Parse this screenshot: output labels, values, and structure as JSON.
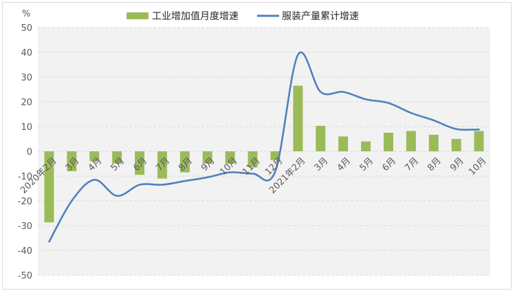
{
  "chart_data": {
    "type": "bar+line",
    "unit_label": "%",
    "ylim": [
      -50,
      50
    ],
    "yticks": [
      50,
      40,
      30,
      20,
      10,
      0,
      -10,
      -20,
      -30,
      -40,
      -50
    ],
    "grid": true,
    "legend_position": "top-center",
    "categories": [
      "2020年2月",
      "3月",
      "4月",
      "5月",
      "6月",
      "7月",
      "8月",
      "9月",
      "10月",
      "11月",
      "12月",
      "2021年2月",
      "3月",
      "4月",
      "5月",
      "6月",
      "7月",
      "8月",
      "9月",
      "10月"
    ],
    "series": [
      {
        "name": "工业增加值月度增速",
        "type": "bar",
        "color": "#9bbb59",
        "values": [
          -28.7,
          -8.0,
          -4.0,
          -5.0,
          -9.5,
          -11.0,
          -8.5,
          -5.0,
          -5.0,
          -6.5,
          -3.5,
          26.5,
          10.3,
          6.0,
          4.0,
          7.5,
          8.2,
          6.7,
          5.0,
          8.2
        ]
      },
      {
        "name": "服装产量累计增速",
        "type": "line",
        "color": "#4f81bd",
        "values": [
          -36.5,
          -20.0,
          -11.5,
          -18.0,
          -13.5,
          -13.5,
          -12.0,
          -10.5,
          -8.5,
          -9.0,
          -8.0,
          39.0,
          24.0,
          24.0,
          21.0,
          19.5,
          15.5,
          12.5,
          9.0,
          8.8
        ]
      }
    ]
  }
}
